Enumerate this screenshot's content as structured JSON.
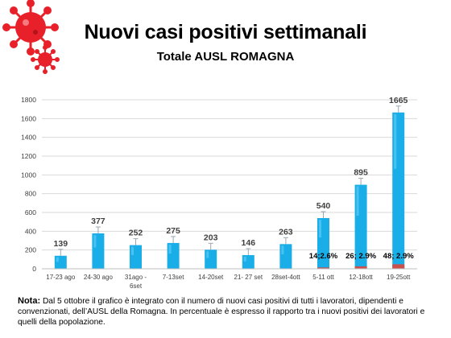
{
  "header": {
    "title": "Nuovi casi positivi settimanali",
    "subtitle": "Totale AUSL ROMAGNA"
  },
  "icons": [
    "virus-icon"
  ],
  "colors": {
    "bar": "#1aaee8",
    "bar_highlight": "#6fd3f7",
    "worker_bar": "#c9504d",
    "virus": "#e8202a"
  },
  "chart_data": {
    "type": "bar",
    "title": "Nuovi casi positivi settimanali",
    "subtitle": "Totale AUSL ROMAGNA",
    "categories": [
      "17-23 ago",
      "24-30 ago",
      "31ago - 6set",
      "7-13set",
      "14-20set",
      "21- 27 set",
      "28set-4ott",
      "5-11 ott",
      "12-18ott",
      "19-25ott"
    ],
    "series": [
      {
        "values": [
          139,
          377,
          252,
          275,
          203,
          146,
          263,
          540,
          895,
          1665
        ]
      },
      {
        "values": [
          null,
          null,
          null,
          null,
          null,
          null,
          null,
          14,
          26,
          48
        ]
      }
    ],
    "value_labels": [
      "139",
      "377",
      "252",
      "275",
      "203",
      "146",
      "263",
      "540",
      "895",
      "1665"
    ],
    "worker_labels": [
      "",
      "",
      "",
      "",
      "",
      "",
      "",
      "14;2.6%",
      "26; 2.9%",
      "48; 2.9%"
    ],
    "yticks": [
      0,
      200,
      400,
      600,
      800,
      1000,
      1200,
      1400,
      1600,
      1800
    ],
    "ylim": [
      0,
      1800
    ],
    "grid": true,
    "xlabel": "",
    "ylabel": ""
  },
  "note": {
    "label": "Nota:",
    "text": " Dal 5 ottobre il grafico è integrato con il numero di nuovi casi positivi di tutti i lavoratori, dipendenti e convenzionati, dell’AUSL della Romagna. In percentuale è espresso il rapporto tra i nuovi positivi dei lavoratori e quelli della popolazione."
  }
}
